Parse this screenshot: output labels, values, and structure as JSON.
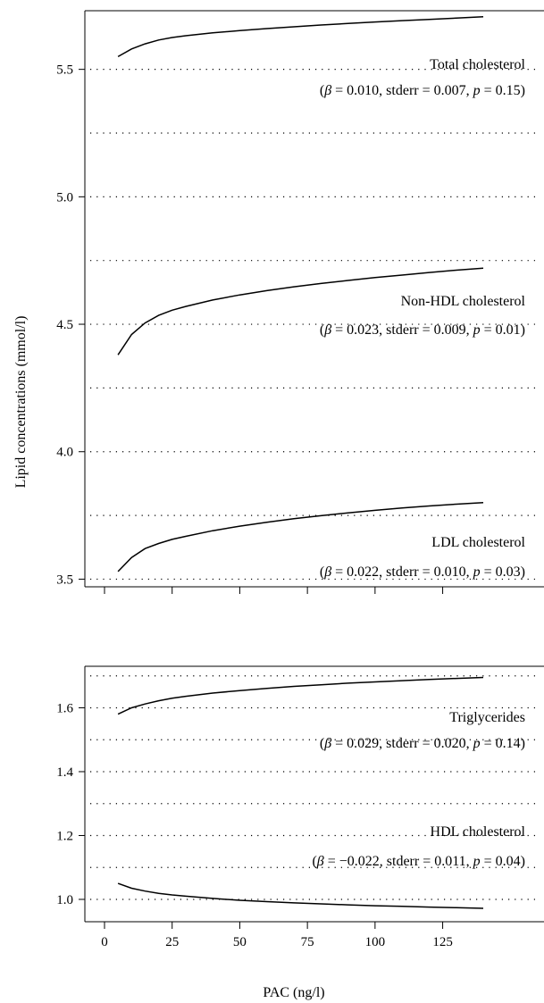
{
  "figure": {
    "ylabel": "Lipid concentrations (mmol/l)",
    "xlabel": "PAC (ng/l)"
  },
  "chart_data": [
    {
      "type": "line",
      "panel": "top",
      "xlim": [
        0,
        140
      ],
      "ylim": [
        3.47,
        5.73
      ],
      "yticks": [
        3.5,
        4.0,
        4.5,
        5.0,
        5.5
      ],
      "ytick_labels": [
        "3.5",
        "4.0",
        "4.5",
        "5.0",
        "5.5"
      ],
      "xticks": [
        0,
        25,
        50,
        75,
        100,
        125
      ],
      "xtick_labels": [],
      "grid": "dotted horizontal",
      "series": [
        {
          "name": "Total cholesterol",
          "stats": [
            "(",
            "β",
            " = 0.010, stderr = 0.007, ",
            "p",
            " = 0.15)"
          ],
          "x": [
            5,
            10,
            15,
            20,
            25,
            30,
            40,
            50,
            60,
            70,
            80,
            90,
            100,
            110,
            120,
            130,
            140
          ],
          "y": [
            5.55,
            5.58,
            5.6,
            5.615,
            5.625,
            5.632,
            5.643,
            5.652,
            5.66,
            5.667,
            5.674,
            5.68,
            5.686,
            5.691,
            5.696,
            5.701,
            5.706
          ]
        },
        {
          "name": "Non-HDL cholesterol",
          "stats": [
            "(",
            "β",
            " = 0.023, stderr = 0.009, ",
            "p",
            " = 0.01)"
          ],
          "x": [
            5,
            10,
            15,
            20,
            25,
            30,
            40,
            50,
            60,
            70,
            80,
            90,
            100,
            110,
            120,
            130,
            140
          ],
          "y": [
            4.38,
            4.46,
            4.505,
            4.535,
            4.555,
            4.57,
            4.595,
            4.615,
            4.632,
            4.647,
            4.66,
            4.672,
            4.683,
            4.693,
            4.703,
            4.712,
            4.72
          ]
        },
        {
          "name": "LDL cholesterol",
          "stats": [
            "(",
            "β",
            " = 0.022, stderr = 0.010, ",
            "p",
            " = 0.03)"
          ],
          "x": [
            5,
            10,
            15,
            20,
            25,
            30,
            40,
            50,
            60,
            70,
            80,
            90,
            100,
            110,
            120,
            130,
            140
          ],
          "y": [
            3.53,
            3.585,
            3.62,
            3.64,
            3.656,
            3.668,
            3.69,
            3.708,
            3.723,
            3.737,
            3.749,
            3.76,
            3.77,
            3.779,
            3.787,
            3.794,
            3.8
          ]
        }
      ]
    },
    {
      "type": "line",
      "panel": "bottom",
      "xlim": [
        0,
        140
      ],
      "ylim": [
        0.93,
        1.73
      ],
      "yticks": [
        1.0,
        1.2,
        1.4,
        1.6
      ],
      "ytick_labels": [
        "1.0",
        "1.2",
        "1.4",
        "1.6"
      ],
      "xticks": [
        0,
        25,
        50,
        75,
        100,
        125
      ],
      "xtick_labels": [
        "0",
        "25",
        "50",
        "75",
        "100",
        "125"
      ],
      "grid": "dotted horizontal",
      "series": [
        {
          "name": "Triglycerides",
          "stats": [
            "(",
            "β",
            " = 0.029, stderr = 0.020, ",
            "p",
            " = 0.14)"
          ],
          "x": [
            5,
            10,
            15,
            20,
            25,
            30,
            40,
            50,
            60,
            70,
            80,
            90,
            100,
            110,
            120,
            130,
            140
          ],
          "y": [
            1.58,
            1.6,
            1.612,
            1.622,
            1.63,
            1.636,
            1.646,
            1.654,
            1.661,
            1.667,
            1.672,
            1.677,
            1.681,
            1.685,
            1.689,
            1.692,
            1.695
          ]
        },
        {
          "name": "HDL cholesterol",
          "stats": [
            "(",
            "β",
            " = −0.022, stderr = 0.011, ",
            "p",
            " = 0.04)"
          ],
          "x": [
            5,
            10,
            15,
            20,
            25,
            30,
            40,
            50,
            60,
            70,
            80,
            90,
            100,
            110,
            120,
            130,
            140
          ],
          "y": [
            1.05,
            1.035,
            1.026,
            1.019,
            1.014,
            1.01,
            1.003,
            0.997,
            0.993,
            0.989,
            0.986,
            0.983,
            0.98,
            0.978,
            0.976,
            0.974,
            0.972
          ]
        }
      ]
    }
  ]
}
